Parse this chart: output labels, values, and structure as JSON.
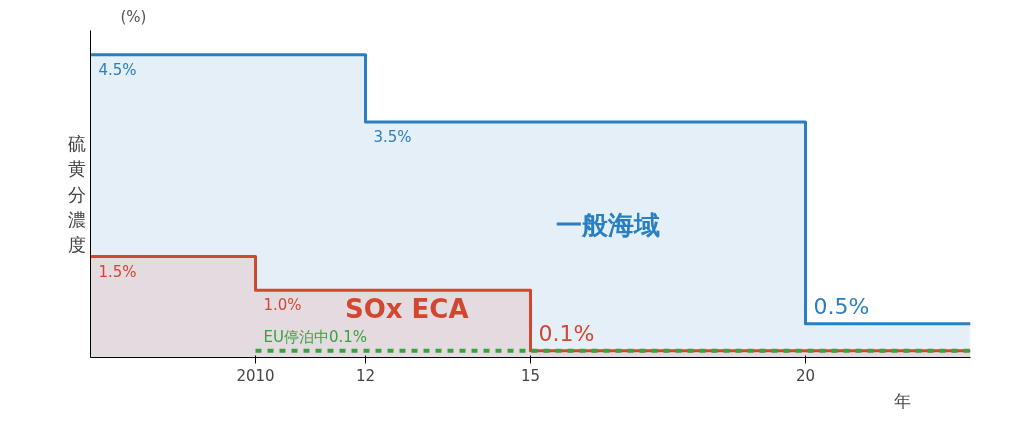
{
  "chart_data": {
    "type": "area",
    "ylabel": "硫黄分濃度",
    "xlabel": "年",
    "annotations": [
      "(%)"
    ],
    "xlim": [
      2007,
      2023
    ],
    "xticks": [
      2010,
      {
        "value": 2012,
        "label": "12"
      },
      {
        "value": 2015,
        "label": "15"
      },
      {
        "value": 2020,
        "label": "20"
      }
    ],
    "tick_labels": "x",
    "grid": false,
    "line_style": "solid",
    "series": [
      {
        "name": "一般海域",
        "color": "#2a7fc0",
        "x": [
          2007,
          2012,
          2012,
          2020,
          2020,
          2023
        ],
        "values": [
          4.5,
          4.5,
          3.5,
          3.5,
          0.5,
          0.5
        ],
        "value_labels": [
          "4.5%",
          null,
          "3.5%",
          null,
          "0.5%",
          null
        ]
      },
      {
        "name": "SOx ECA",
        "color": "#d2472f",
        "x": [
          2007,
          2010,
          2010,
          2015,
          2015,
          2023
        ],
        "values": [
          1.5,
          1.5,
          1.0,
          1.0,
          0.1,
          0.1
        ],
        "value_labels": [
          "1.5%",
          null,
          "1.0%",
          null,
          "0.1%",
          null
        ]
      },
      {
        "type": "line",
        "color": "#3aa040",
        "x": [
          2010,
          2023
        ],
        "values": [
          0.1,
          0.1
        ],
        "line_style": "dashed",
        "value_labels": [
          "EU停泊中0.1%",
          null
        ]
      }
    ]
  }
}
